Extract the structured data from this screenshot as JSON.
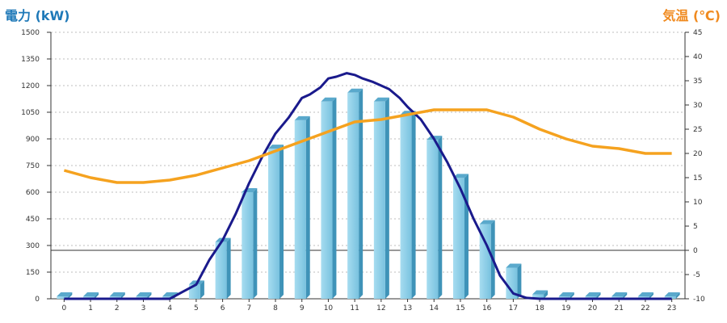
{
  "chart_data": {
    "type": "bar",
    "title": "",
    "ylabel_left": "電力 (kW)",
    "ylabel_right": "気温 (℃)",
    "xlabel": "",
    "x_categories": [
      "0",
      "1",
      "2",
      "3",
      "4",
      "5",
      "6",
      "7",
      "8",
      "9",
      "10",
      "11",
      "12",
      "13",
      "14",
      "15",
      "16",
      "17",
      "18",
      "19",
      "20",
      "21",
      "22",
      "23"
    ],
    "y_left_ticks": [
      "0",
      "150",
      "300",
      "450",
      "600",
      "750",
      "900",
      "1050",
      "1200",
      "1350",
      "1500"
    ],
    "y_right_ticks": [
      "-10",
      "-5",
      "0",
      "5",
      "10",
      "15",
      "20",
      "25",
      "30",
      "35",
      "40",
      "45"
    ],
    "ylim_left": [
      0,
      1500
    ],
    "ylim_right": [
      -10,
      45
    ],
    "grid": true,
    "series": [
      {
        "kind": "bar",
        "axis": "left",
        "color": "#87cde6",
        "values": [
          0,
          0,
          0,
          0,
          0,
          80,
          320,
          600,
          845,
          1005,
          1110,
          1160,
          1110,
          1035,
          895,
          680,
          420,
          175,
          25,
          0,
          0,
          0,
          0,
          0
        ]
      },
      {
        "kind": "line",
        "axis": "left",
        "color": "#1a1a8c",
        "points": [
          [
            4,
            0
          ],
          [
            4.5,
            40
          ],
          [
            5,
            80
          ],
          [
            5.5,
            220
          ],
          [
            6,
            330
          ],
          [
            6.5,
            480
          ],
          [
            7,
            650
          ],
          [
            7.5,
            800
          ],
          [
            8,
            930
          ],
          [
            8.5,
            1020
          ],
          [
            9,
            1130
          ],
          [
            9.3,
            1150
          ],
          [
            9.7,
            1190
          ],
          [
            10,
            1240
          ],
          [
            10.3,
            1250
          ],
          [
            10.7,
            1270
          ],
          [
            11,
            1260
          ],
          [
            11.3,
            1240
          ],
          [
            11.7,
            1220
          ],
          [
            12,
            1200
          ],
          [
            12.3,
            1180
          ],
          [
            12.7,
            1130
          ],
          [
            13,
            1080
          ],
          [
            13.5,
            1010
          ],
          [
            14,
            900
          ],
          [
            14.5,
            770
          ],
          [
            15,
            620
          ],
          [
            15.5,
            450
          ],
          [
            16,
            300
          ],
          [
            16.5,
            130
          ],
          [
            17,
            30
          ],
          [
            17.5,
            5
          ],
          [
            18,
            0
          ]
        ]
      },
      {
        "kind": "line",
        "axis": "right",
        "color": "#f5a21f",
        "values": [
          16.5,
          15,
          14,
          14,
          14.5,
          15.5,
          17,
          18.5,
          20.5,
          22.5,
          24.5,
          26.5,
          27,
          28,
          29,
          29,
          29,
          27.5,
          25,
          23,
          21.5,
          21,
          20,
          20
        ]
      }
    ],
    "reference_line": {
      "axis": "right",
      "value": 0
    },
    "legend": ""
  }
}
